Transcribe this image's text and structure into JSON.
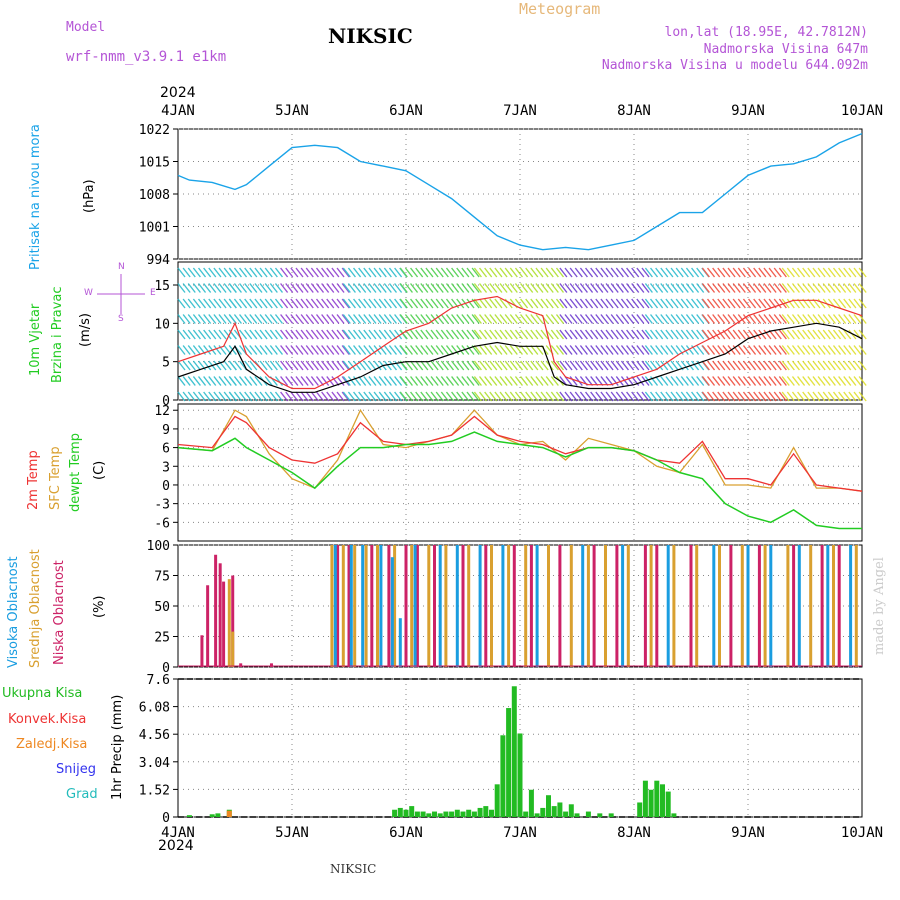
{
  "header": {
    "model_label": "Model",
    "model_name": "wrf-nmm_v3.9.1 e1km",
    "title": "NIKSIC",
    "meteogram": "Meteogram",
    "lonlat": "lon,lat (18.95E, 42.7812N)",
    "altitude": "Nadmorska Visina 647m",
    "model_altitude": "Nadmorska Visina u modelu 644.092m",
    "footer_station": "NIKSIC",
    "watermark": "made by Angel"
  },
  "time_axis": {
    "year": "2024",
    "labels": [
      "4JAN",
      "5JAN",
      "6JAN",
      "7JAN",
      "8JAN",
      "9JAN",
      "10JAN"
    ]
  },
  "colors": {
    "pressure": "#1aa3e8",
    "temp2m": "#ee3333",
    "sfc": "#d9a030",
    "dewpt": "#22cc22",
    "high_cloud": "#1a9de0",
    "mid_cloud": "#d9a030",
    "low_cloud": "#cc2266",
    "precip": "#22bb22",
    "conv": "#ee3333",
    "frozen": "#ee8822",
    "snow": "#3333ee",
    "hail": "#22bbbb",
    "wind_speed": "#000000",
    "gust": "#ee3333"
  },
  "panels": {
    "pressure": {
      "labels": [
        "Pritisak na nivou mora",
        "(hPa)"
      ]
    },
    "wind": {
      "labels": [
        "10m Vjetar",
        "Brzina i Pravac",
        "(m/s)"
      ],
      "compass": {
        "n": "N",
        "s": "S",
        "w": "W",
        "e": "E"
      }
    },
    "temp": {
      "labels": [
        "2m Temp",
        "SFC Temp",
        "dewpt Temp",
        "(C)"
      ]
    },
    "cloud": {
      "labels": [
        "Visoka Oblacnost",
        "Srednja Oblacnost",
        "Niska Oblacnost",
        "(%)"
      ]
    },
    "precip": {
      "labels": [
        "Ukupna Kisa",
        "Konvek.Kisa",
        "Zaledj.Kisa",
        "Snijeg",
        "Grad",
        "1hr Precip (mm)"
      ]
    }
  },
  "chart_data": [
    {
      "type": "line",
      "ylabel": "(hPa)",
      "ylim": [
        994,
        1022
      ],
      "yticks": [
        "1022",
        "1015",
        "1008",
        "1001",
        "994"
      ],
      "series": [
        {
          "name": "Pritisak na nivou mora",
          "x": [
            0,
            0.1,
            0.3,
            0.5,
            0.6,
            0.8,
            1.0,
            1.2,
            1.4,
            1.6,
            1.8,
            2.0,
            2.2,
            2.4,
            2.6,
            2.8,
            3.0,
            3.2,
            3.4,
            3.6,
            3.8,
            4.0,
            4.2,
            4.4,
            4.6,
            4.8,
            5.0,
            5.2,
            5.4,
            5.6,
            5.8,
            6.0
          ],
          "y": [
            1012,
            1011,
            1010.5,
            1009,
            1010,
            1014,
            1018,
            1018.5,
            1018,
            1015,
            1014,
            1013,
            1010,
            1007,
            1003,
            999,
            997,
            996,
            996.5,
            996,
            997,
            998,
            1001,
            1004,
            1004,
            1008,
            1012,
            1014,
            1014.5,
            1016,
            1019,
            1021
          ]
        }
      ]
    },
    {
      "type": "line",
      "ylabel": "(m/s)",
      "ylim": [
        0,
        18
      ],
      "yticks": [
        "15",
        "10",
        "5",
        "0"
      ],
      "series": [
        {
          "name": "Brzina i Pravac",
          "x": [
            0,
            0.2,
            0.4,
            0.5,
            0.6,
            0.8,
            1.0,
            1.2,
            1.4,
            1.6,
            1.8,
            2.0,
            2.2,
            2.4,
            2.6,
            2.8,
            3.0,
            3.2,
            3.3,
            3.4,
            3.6,
            3.8,
            4.0,
            4.2,
            4.4,
            4.6,
            4.8,
            5.0,
            5.2,
            5.4,
            5.6,
            5.8,
            6.0
          ],
          "y": [
            3,
            4,
            5,
            7,
            4,
            2,
            1,
            1,
            2,
            3,
            4.5,
            5,
            5,
            6,
            7,
            7.5,
            7,
            7,
            3,
            2,
            1.5,
            1.5,
            2,
            3,
            4,
            5,
            6,
            8,
            9,
            9.5,
            10,
            9.5,
            8
          ]
        },
        {
          "name": "gust",
          "x": [
            0,
            0.2,
            0.4,
            0.5,
            0.6,
            0.8,
            1.0,
            1.2,
            1.4,
            1.6,
            1.8,
            2.0,
            2.2,
            2.4,
            2.6,
            2.8,
            3.0,
            3.2,
            3.3,
            3.4,
            3.6,
            3.8,
            4.0,
            4.2,
            4.4,
            4.6,
            4.8,
            5.0,
            5.2,
            5.4,
            5.6,
            5.8,
            6.0
          ],
          "y": [
            5,
            6,
            7,
            10,
            6,
            3,
            1.5,
            1.5,
            3,
            5,
            7,
            9,
            10,
            12,
            13,
            13.5,
            12,
            11,
            5,
            3,
            2,
            2,
            3,
            4,
            6,
            7.5,
            9,
            11,
            12,
            13,
            13,
            12,
            11
          ]
        }
      ]
    },
    {
      "type": "line",
      "ylabel": "(C)",
      "ylim": [
        -9,
        13
      ],
      "yticks": [
        "12",
        "9",
        "6",
        "3",
        "0",
        "-3",
        "-6"
      ],
      "series": [
        {
          "name": "2m Temp",
          "x": [
            0,
            0.3,
            0.5,
            0.6,
            0.8,
            1.0,
            1.2,
            1.4,
            1.6,
            1.8,
            2.0,
            2.2,
            2.4,
            2.6,
            2.8,
            3.0,
            3.2,
            3.4,
            3.6,
            3.8,
            4.0,
            4.2,
            4.4,
            4.6,
            4.8,
            5.0,
            5.2,
            5.4,
            5.6,
            5.8,
            6.0
          ],
          "y": [
            6.5,
            6,
            11,
            10,
            6,
            4,
            3.5,
            5,
            10,
            7,
            6.5,
            7,
            8,
            11,
            8,
            7,
            6.5,
            5,
            6,
            6,
            5.5,
            4,
            3.5,
            7,
            1,
            1,
            0,
            5,
            0,
            -0.5,
            -1
          ]
        },
        {
          "name": "SFC Temp",
          "x": [
            0,
            0.3,
            0.5,
            0.6,
            0.8,
            1.0,
            1.2,
            1.4,
            1.6,
            1.8,
            2.0,
            2.2,
            2.4,
            2.6,
            2.8,
            3.0,
            3.2,
            3.4,
            3.6,
            3.8,
            4.0,
            4.2,
            4.4,
            4.6,
            4.8,
            5.0,
            5.2,
            5.4,
            5.6,
            5.8,
            6.0
          ],
          "y": [
            6,
            5.5,
            12,
            11,
            5,
            1,
            -0.5,
            4,
            12,
            6.5,
            6,
            7,
            8,
            12,
            8,
            6.5,
            7,
            4,
            7.5,
            6.5,
            5.5,
            3,
            2,
            6.5,
            0,
            0,
            -0.5,
            6,
            -0.5,
            -0.5,
            -1
          ]
        },
        {
          "name": "dewpt Temp",
          "x": [
            0,
            0.3,
            0.5,
            0.6,
            0.8,
            1.0,
            1.2,
            1.4,
            1.6,
            1.8,
            2.0,
            2.2,
            2.4,
            2.6,
            2.8,
            3.0,
            3.2,
            3.4,
            3.6,
            3.8,
            4.0,
            4.2,
            4.4,
            4.6,
            4.8,
            5.0,
            5.2,
            5.4,
            5.6,
            5.8,
            6.0
          ],
          "y": [
            6,
            5.5,
            7.5,
            6,
            4,
            2,
            -0.5,
            3,
            6,
            6,
            6.5,
            6.5,
            7,
            8.5,
            7,
            6.5,
            6,
            4.5,
            6,
            6,
            5.5,
            4,
            2,
            1,
            -3,
            -5,
            -6,
            -4,
            -6.5,
            -7,
            -7
          ]
        }
      ]
    },
    {
      "type": "bar",
      "ylabel": "(%)",
      "ylim": [
        0,
        100
      ],
      "yticks": [
        "100",
        "75",
        "50",
        "25",
        "0"
      ],
      "series": [
        {
          "name": "Niska Oblacnost",
          "x": [
            0.21,
            0.26,
            0.33,
            0.37,
            0.4,
            0.48,
            0.55,
            0.82,
            1.4,
            1.5,
            1.7,
            1.85,
            2.0,
            2.1,
            2.25,
            2.5,
            2.7,
            2.95,
            3.1,
            3.35,
            3.65,
            3.85,
            4.1,
            4.2,
            4.5,
            4.85,
            5.1,
            5.4,
            5.65,
            5.8
          ],
          "values": [
            26,
            67,
            92,
            85,
            70,
            75,
            3,
            3,
            100,
            100,
            100,
            100,
            100,
            100,
            100,
            100,
            100,
            100,
            100,
            100,
            100,
            100,
            100,
            100,
            100,
            100,
            100,
            100,
            100,
            100
          ]
        },
        {
          "name": "Srednja Oblacnost",
          "x": [
            0.45,
            0.48,
            1.35,
            1.45,
            1.55,
            1.65,
            1.75,
            1.9,
            2.05,
            2.2,
            2.35,
            2.55,
            2.75,
            2.9,
            3.05,
            3.25,
            3.45,
            3.6,
            3.75,
            3.95,
            4.15,
            4.35,
            4.55,
            4.75,
            4.95,
            5.15,
            5.35,
            5.55,
            5.75,
            5.95
          ],
          "values": [
            72,
            29,
            100,
            100,
            100,
            100,
            100,
            100,
            100,
            100,
            100,
            100,
            100,
            100,
            100,
            100,
            100,
            100,
            100,
            100,
            100,
            100,
            100,
            100,
            100,
            100,
            100,
            100,
            100,
            100
          ]
        },
        {
          "name": "Visoka Oblacnost",
          "x": [
            1.38,
            1.52,
            1.62,
            1.78,
            1.88,
            1.95,
            2.08,
            2.3,
            2.45,
            2.65,
            2.85,
            3.15,
            3.55,
            3.9,
            4.3,
            4.7,
            5.0,
            5.2,
            5.45,
            5.7,
            5.9
          ],
          "values": [
            100,
            100,
            100,
            100,
            90,
            40,
            100,
            100,
            100,
            100,
            100,
            100,
            100,
            100,
            100,
            100,
            100,
            100,
            100,
            100,
            100
          ]
        }
      ]
    },
    {
      "type": "bar",
      "ylabel": "1hr Precip (mm)",
      "ylim": [
        0,
        7.6
      ],
      "yticks": [
        "7.6",
        "6.08",
        "4.56",
        "3.04",
        "1.52",
        "0"
      ],
      "series": [
        {
          "name": "Ukupna Kisa",
          "x": [
            0.1,
            0.3,
            0.35,
            0.45,
            1.9,
            1.95,
            2.0,
            2.05,
            2.1,
            2.15,
            2.2,
            2.25,
            2.3,
            2.35,
            2.4,
            2.45,
            2.5,
            2.55,
            2.6,
            2.65,
            2.7,
            2.75,
            2.8,
            2.85,
            2.9,
            2.95,
            3.0,
            3.05,
            3.1,
            3.15,
            3.2,
            3.25,
            3.3,
            3.35,
            3.4,
            3.45,
            3.5,
            3.6,
            3.7,
            3.8,
            4.05,
            4.1,
            4.15,
            4.2,
            4.25,
            4.3,
            4.35
          ],
          "values": [
            0.1,
            0.15,
            0.2,
            0.4,
            0.4,
            0.5,
            0.4,
            0.6,
            0.3,
            0.3,
            0.2,
            0.3,
            0.2,
            0.3,
            0.3,
            0.4,
            0.3,
            0.4,
            0.3,
            0.5,
            0.6,
            0.4,
            1.8,
            4.5,
            6.0,
            7.2,
            4.6,
            0.3,
            1.5,
            0.2,
            0.5,
            1.2,
            0.6,
            0.8,
            0.3,
            0.7,
            0.2,
            0.3,
            0.2,
            0.2,
            0.8,
            2.0,
            1.5,
            2.0,
            1.8,
            1.4,
            0.2
          ]
        },
        {
          "name": "Zaledj.Kisa",
          "x": [
            0.45
          ],
          "values": [
            0.35
          ]
        }
      ]
    }
  ]
}
